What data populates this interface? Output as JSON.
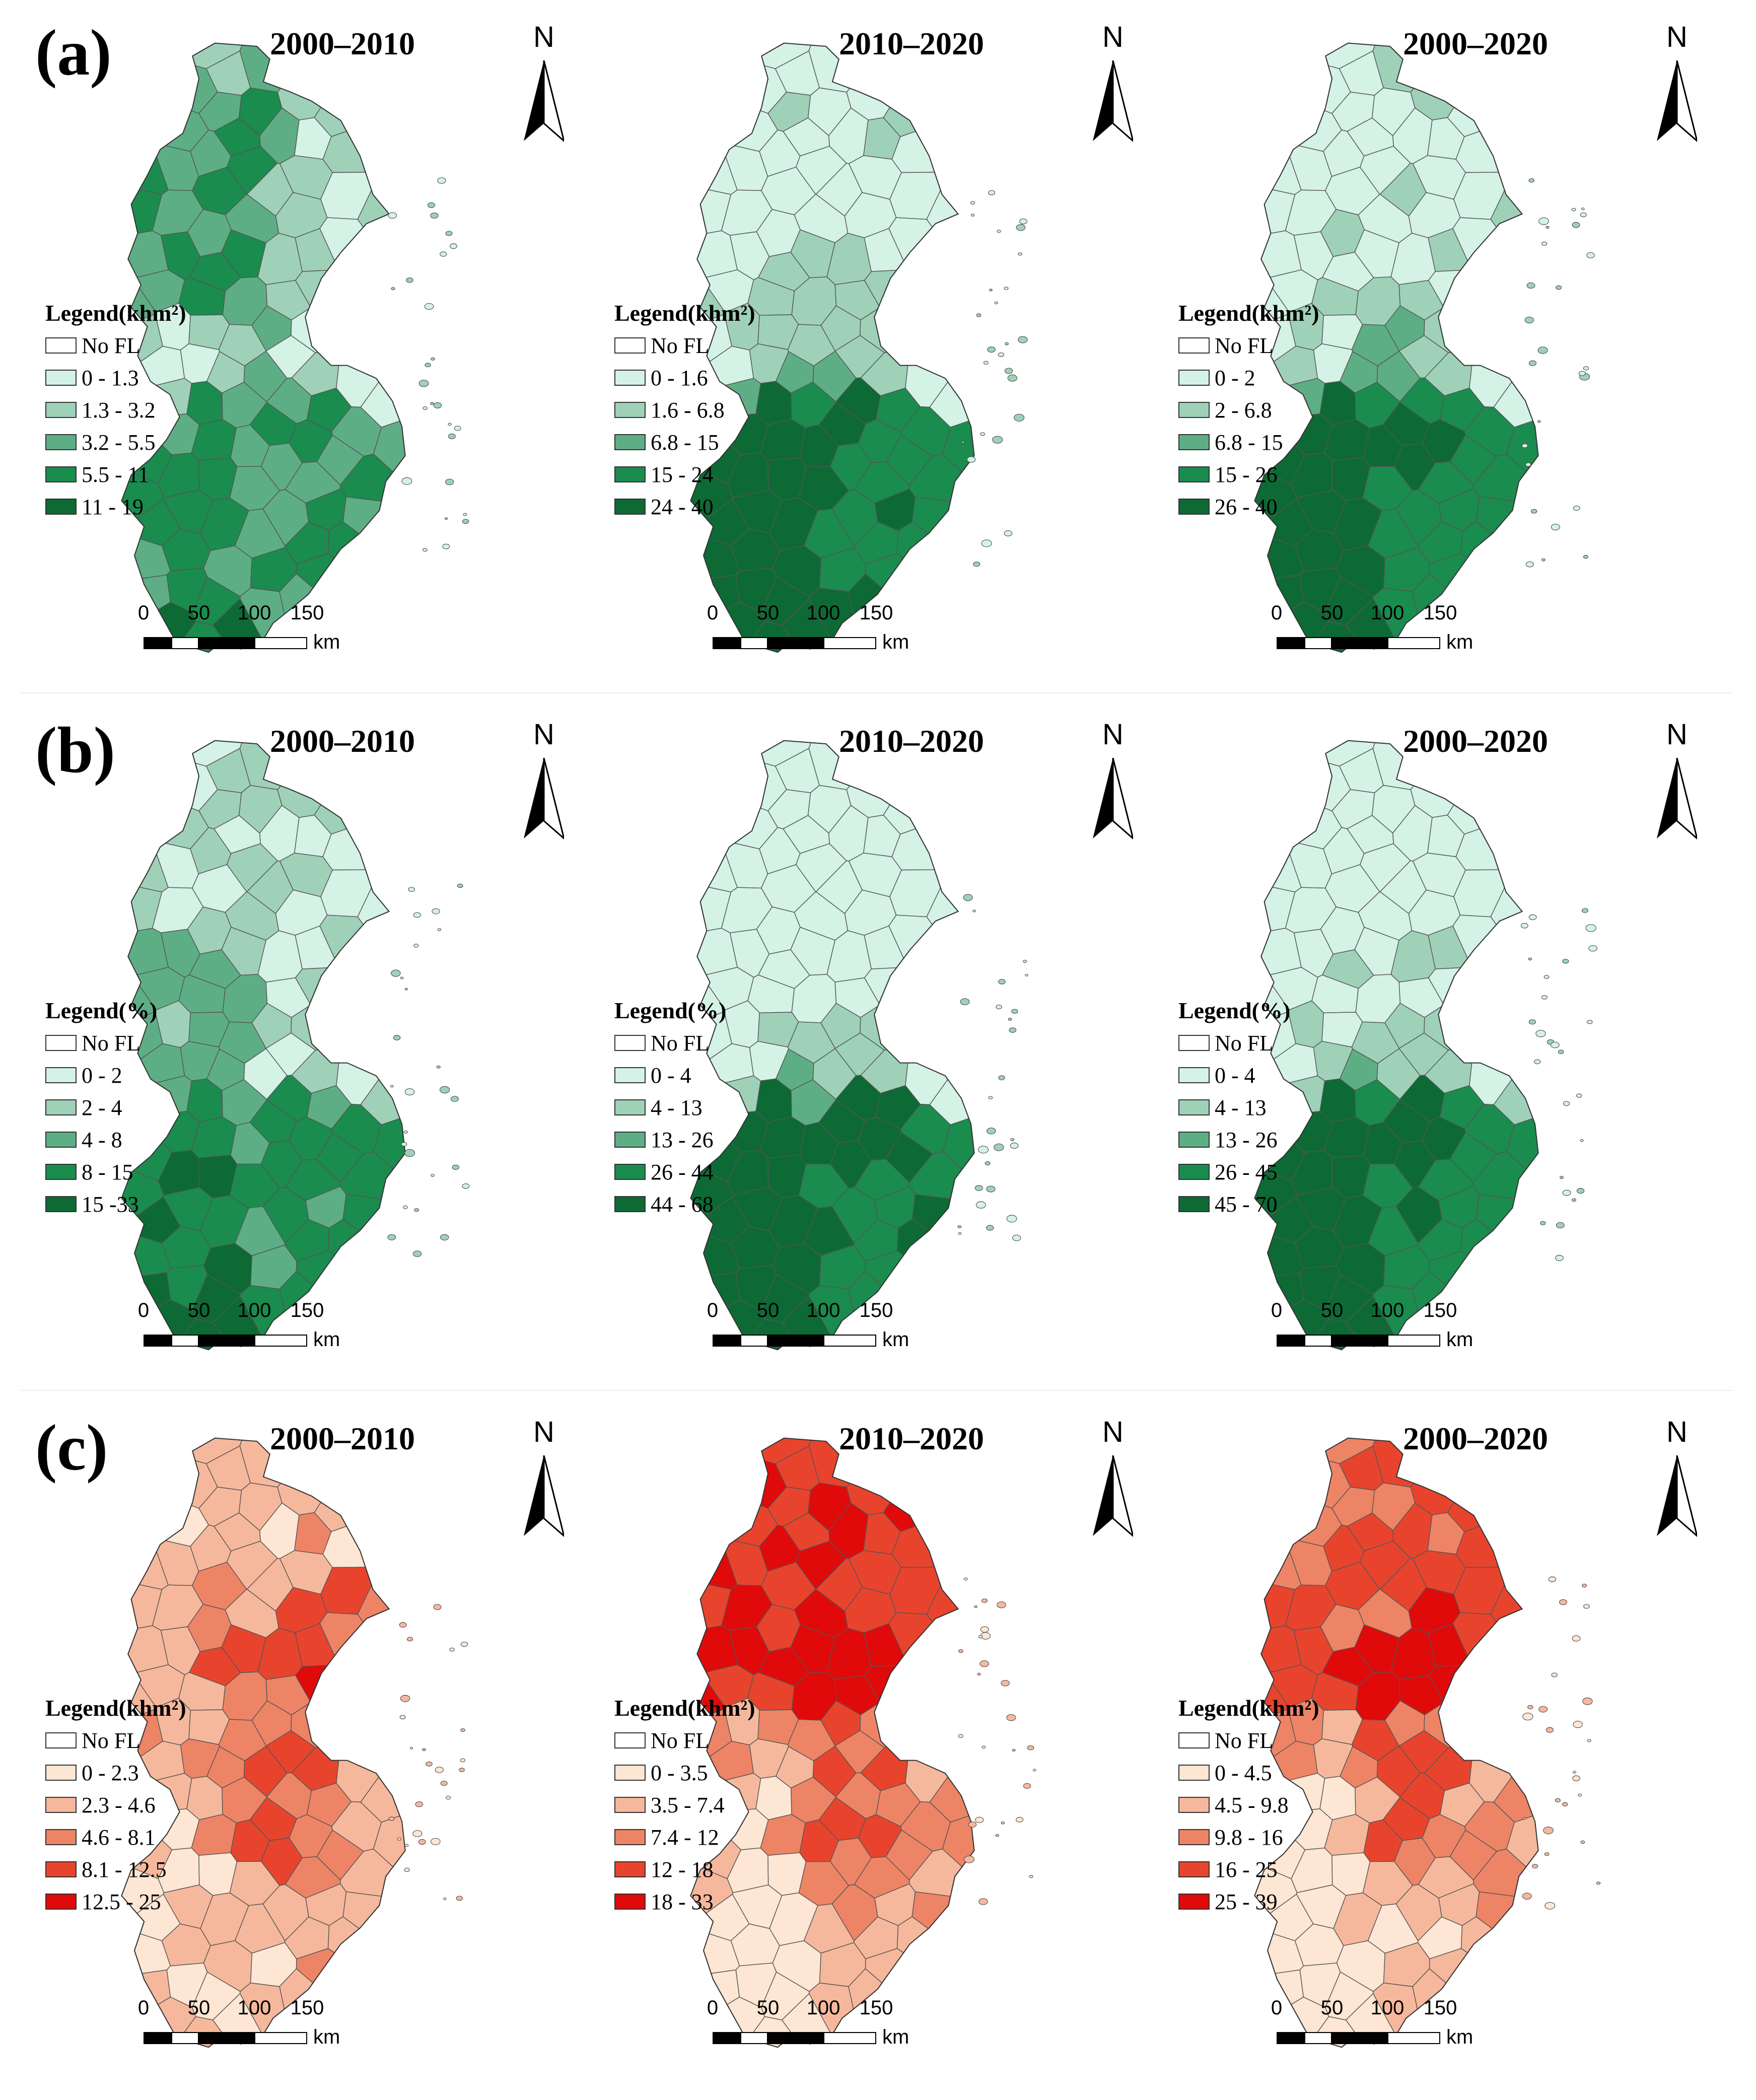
{
  "figure": {
    "rows": [
      {
        "label": "(a)",
        "panels": [
          {
            "title": "2000–2010",
            "legend_title": "Legend(khm²)",
            "classes": [
              "No FL",
              "0 - 1.3",
              "1.3 - 3.2",
              "3.2 - 5.5",
              "5.5 - 11",
              "11 - 19"
            ],
            "colors": [
              "#ffffff",
              "#d4f2e6",
              "#9fd1b8",
              "#5eae85",
              "#1a8c4e",
              "#0d6a35"
            ]
          },
          {
            "title": "2010–2020",
            "legend_title": "Legend(khm²)",
            "classes": [
              "No FL",
              "0 - 1.6",
              "1.6 - 6.8",
              "6.8 - 15",
              "15 - 24",
              "24 - 40"
            ],
            "colors": [
              "#ffffff",
              "#d4f2e6",
              "#9fd1b8",
              "#5eae85",
              "#1a8c4e",
              "#0d6a35"
            ]
          },
          {
            "title": "2000–2020",
            "legend_title": "Legend(khm²)",
            "classes": [
              "No FL",
              "0 - 2",
              "2 - 6.8",
              "6.8 - 15",
              "15 - 26",
              "26 - 40"
            ],
            "colors": [
              "#ffffff",
              "#d4f2e6",
              "#9fd1b8",
              "#5eae85",
              "#1a8c4e",
              "#0d6a35"
            ]
          }
        ]
      },
      {
        "label": "(b)",
        "panels": [
          {
            "title": "2000–2010",
            "legend_title": "Legend(%)",
            "classes": [
              "No FL",
              "0 - 2",
              "2 - 4",
              "4 - 8",
              "8 - 15",
              "15 -33"
            ],
            "colors": [
              "#ffffff",
              "#d4f2e6",
              "#9fd1b8",
              "#5eae85",
              "#1a8c4e",
              "#0d6a35"
            ]
          },
          {
            "title": "2010–2020",
            "legend_title": "Legend(%)",
            "classes": [
              "No FL",
              "0 - 4",
              "4 - 13",
              "13 - 26",
              "26 - 44",
              "44 - 68"
            ],
            "colors": [
              "#ffffff",
              "#d4f2e6",
              "#9fd1b8",
              "#5eae85",
              "#1a8c4e",
              "#0d6a35"
            ]
          },
          {
            "title": "2000–2020",
            "legend_title": "Legend(%)",
            "classes": [
              "No FL",
              "0 - 4",
              "4 - 13",
              "13 - 26",
              "26 - 45",
              "45 - 70"
            ],
            "colors": [
              "#ffffff",
              "#d4f2e6",
              "#9fd1b8",
              "#5eae85",
              "#1a8c4e",
              "#0d6a35"
            ]
          }
        ]
      },
      {
        "label": "(c)",
        "panels": [
          {
            "title": "2000–2010",
            "legend_title": "Legend(khm²)",
            "classes": [
              "No FL",
              "0 - 2.3",
              "2.3 - 4.6",
              "4.6 - 8.1",
              "8.1 - 12.5",
              "12.5 - 25"
            ],
            "colors": [
              "#ffffff",
              "#fde6d3",
              "#f6b89c",
              "#ee8466",
              "#e8442d",
              "#e10a0a"
            ]
          },
          {
            "title": "2010–2020",
            "legend_title": "Legend(khm²)",
            "classes": [
              "No FL",
              "0 - 3.5",
              "3.5 - 7.4",
              "7.4 - 12",
              "12 - 18",
              "18 - 33"
            ],
            "colors": [
              "#ffffff",
              "#fde6d3",
              "#f6b89c",
              "#ee8466",
              "#e8442d",
              "#e10a0a"
            ]
          },
          {
            "title": "2000–2020",
            "legend_title": "Legend(khm²)",
            "classes": [
              "No FL",
              "0 - 4.5",
              "4.5 - 9.8",
              "9.8 - 16",
              "16 - 25",
              "25 - 39"
            ],
            "colors": [
              "#ffffff",
              "#fde6d3",
              "#f6b89c",
              "#ee8466",
              "#e8442d",
              "#e10a0a"
            ]
          }
        ]
      }
    ],
    "north_label": "N",
    "scale_ticks": [
      "0",
      "50",
      "100",
      "150"
    ],
    "scale_unit": "km",
    "border_color": "#555555"
  }
}
